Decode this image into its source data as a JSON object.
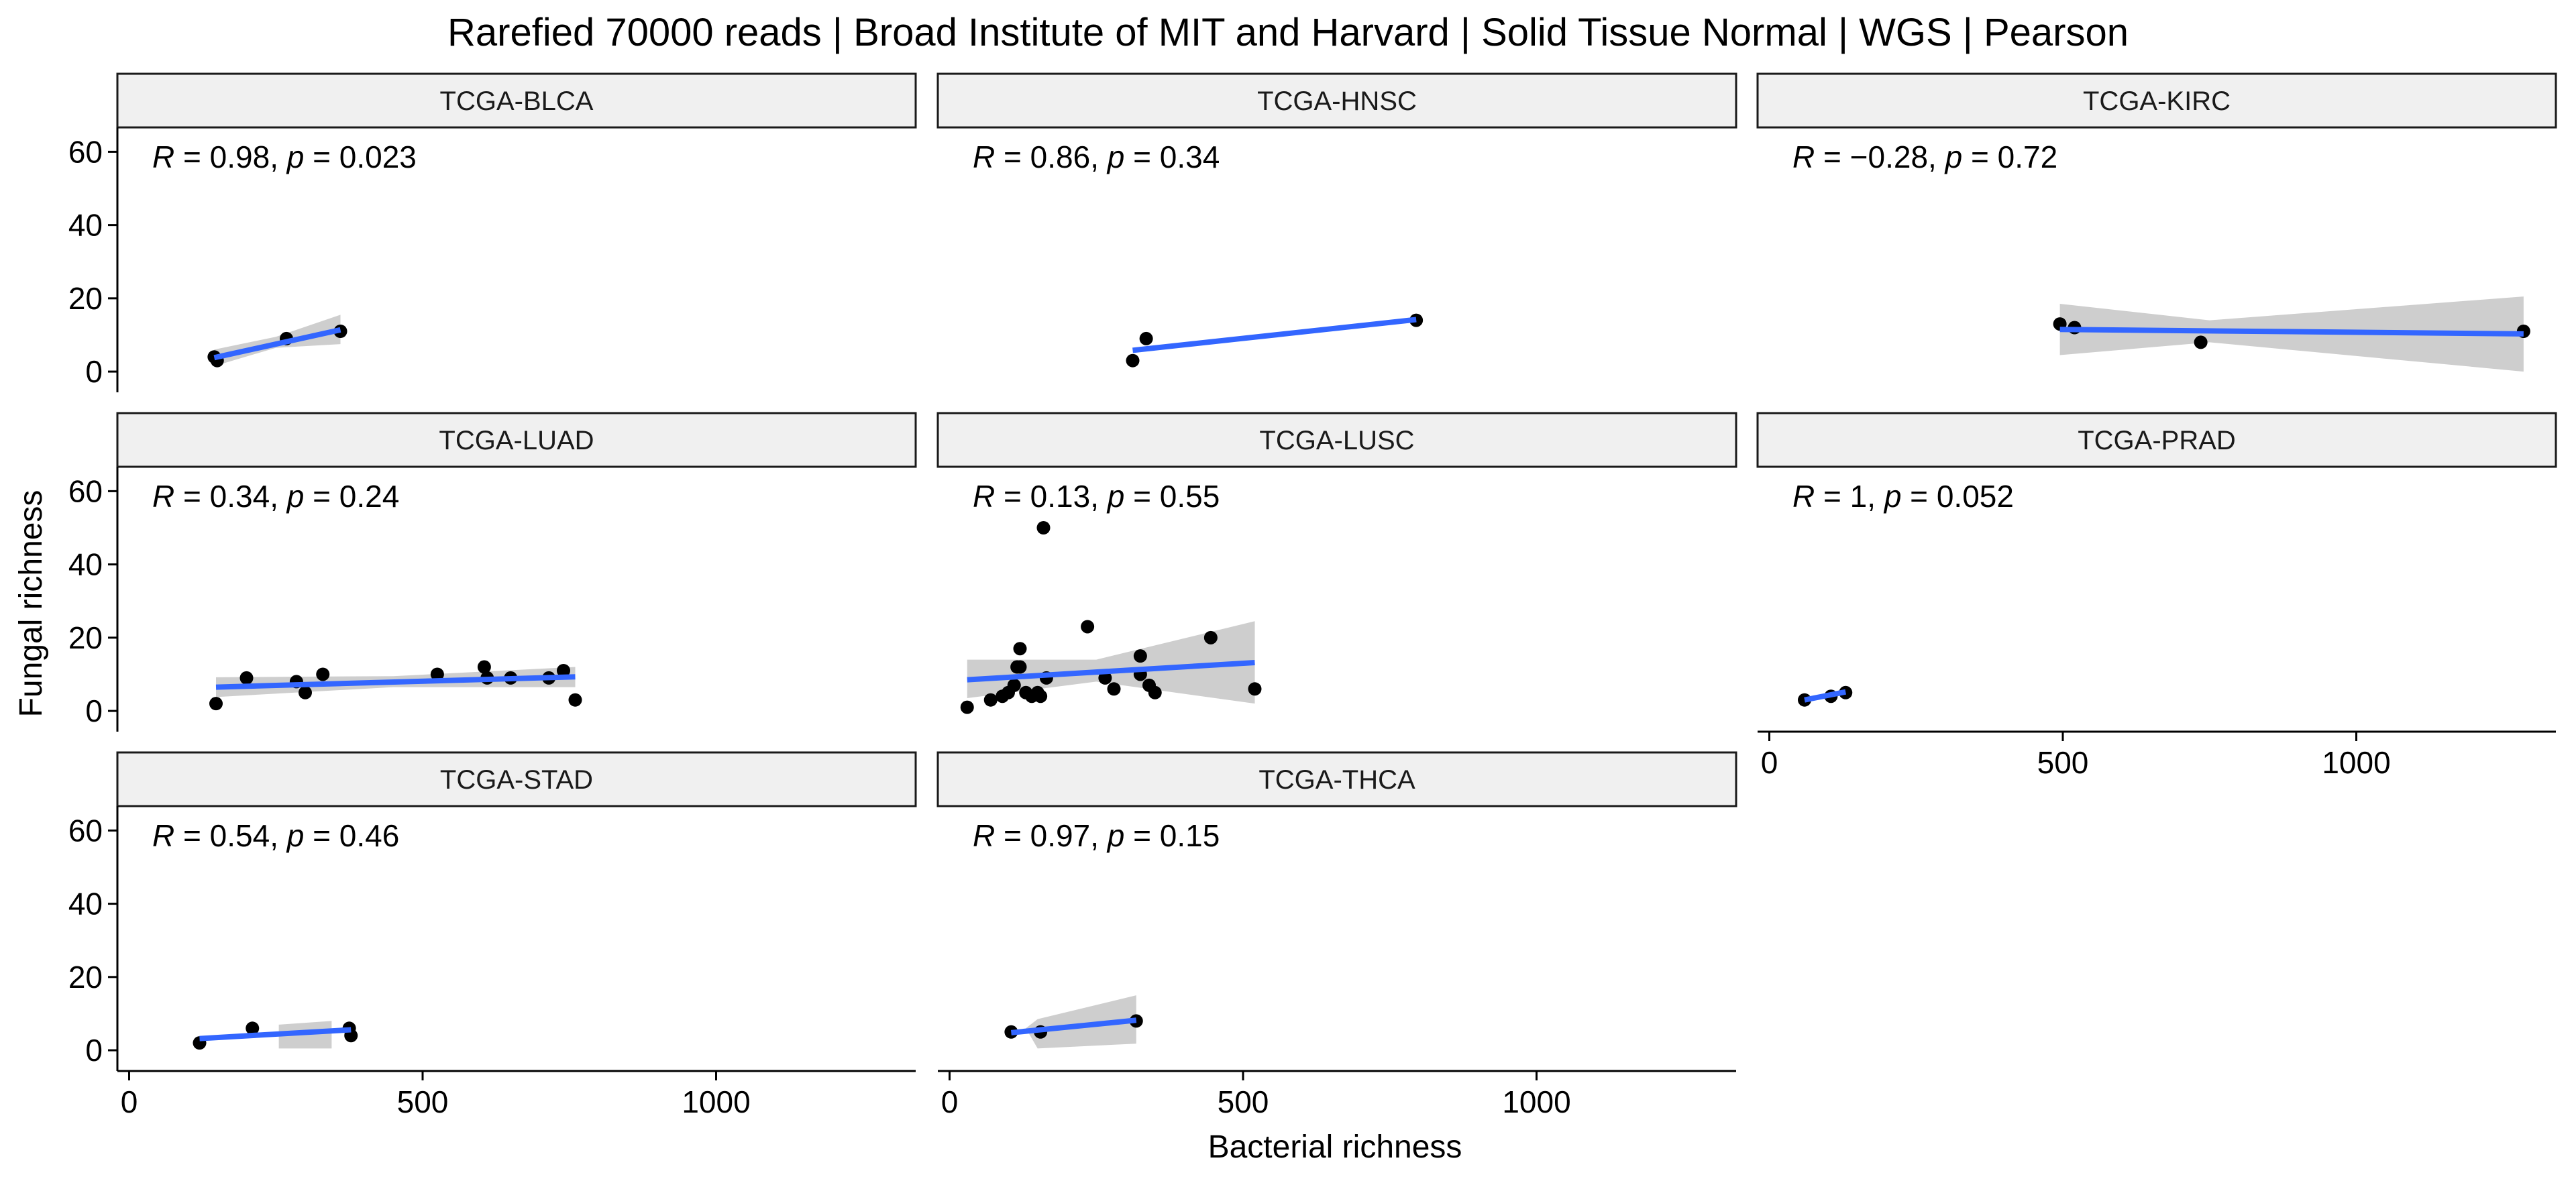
{
  "chart_data": {
    "type": "scatter",
    "title": "Rarefied 70000 reads | Broad Institute of MIT and Harvard | Solid Tissue Normal | WGS | Pearson",
    "xlabel": "Bacterial richness",
    "ylabel": "Fungal richness",
    "xlim": [
      -20,
      1340
    ],
    "ylim": [
      -2,
      63
    ],
    "x_ticks": [
      0,
      500,
      1000
    ],
    "y_ticks": [
      0,
      20,
      40,
      60
    ],
    "grid": false,
    "colors": {
      "point": "#000000",
      "line": "#3366FF",
      "ribbon": "#BEBEBE",
      "strip_fill": "#F0F0F0",
      "strip_border": "#1a1a1a"
    },
    "panels": [
      {
        "label": "TCGA-BLCA",
        "r_text": "0.98",
        "p_text": "0.023",
        "points": [
          [
            145,
            4
          ],
          [
            150,
            3
          ],
          [
            268,
            9
          ],
          [
            360,
            11
          ]
        ],
        "fit": [
          145,
          3.8,
          360,
          11.4
        ],
        "ribbon": [
          [
            145,
            1.5
          ],
          [
            250,
            6.5
          ],
          [
            360,
            7.5
          ],
          [
            360,
            15.5
          ],
          [
            250,
            9.5
          ],
          [
            145,
            6
          ]
        ]
      },
      {
        "label": "TCGA-HNSC",
        "r_text": "0.86",
        "p_text": "0.34",
        "points": [
          [
            312,
            3
          ],
          [
            335,
            9
          ],
          [
            795,
            14
          ]
        ],
        "fit": [
          312,
          5.8,
          795,
          14.2
        ],
        "ribbon": []
      },
      {
        "label": "TCGA-KIRC",
        "r_text": "−0.28",
        "p_text": "0.72",
        "points": [
          [
            495,
            13
          ],
          [
            520,
            12
          ],
          [
            735,
            8
          ],
          [
            1285,
            11
          ]
        ],
        "fit": [
          495,
          11.5,
          1285,
          10.3
        ],
        "ribbon": [
          [
            495,
            4.5
          ],
          [
            750,
            8
          ],
          [
            1285,
            0
          ],
          [
            1285,
            20.5
          ],
          [
            750,
            14
          ],
          [
            495,
            18.5
          ]
        ]
      },
      {
        "label": "TCGA-LUAD",
        "r_text": "0.34",
        "p_text": "0.24",
        "points": [
          [
            148,
            2
          ],
          [
            200,
            9
          ],
          [
            285,
            8
          ],
          [
            300,
            5
          ],
          [
            330,
            10
          ],
          [
            525,
            10
          ],
          [
            605,
            12
          ],
          [
            610,
            9
          ],
          [
            650,
            9
          ],
          [
            715,
            9
          ],
          [
            740,
            11
          ],
          [
            760,
            3
          ]
        ],
        "fit": [
          148,
          6.5,
          760,
          9.3
        ],
        "ribbon": [
          [
            148,
            3.8
          ],
          [
            450,
            6.5
          ],
          [
            760,
            6.5
          ],
          [
            760,
            12
          ],
          [
            450,
            9.5
          ],
          [
            148,
            9.2
          ]
        ]
      },
      {
        "label": "TCGA-LUSC",
        "r_text": "0.13",
        "p_text": "0.55",
        "points": [
          [
            30,
            1
          ],
          [
            70,
            3
          ],
          [
            90,
            4
          ],
          [
            100,
            5
          ],
          [
            110,
            7
          ],
          [
            115,
            12
          ],
          [
            120,
            17
          ],
          [
            120,
            12
          ],
          [
            130,
            5
          ],
          [
            140,
            4
          ],
          [
            150,
            5
          ],
          [
            155,
            4
          ],
          [
            160,
            50
          ],
          [
            165,
            9
          ],
          [
            235,
            23
          ],
          [
            265,
            9
          ],
          [
            280,
            6
          ],
          [
            325,
            15
          ],
          [
            325,
            10
          ],
          [
            340,
            7
          ],
          [
            350,
            5
          ],
          [
            445,
            20
          ],
          [
            520,
            6
          ]
        ],
        "fit": [
          30,
          8.5,
          520,
          13.2
        ],
        "ribbon": [
          [
            30,
            3.5
          ],
          [
            250,
            8
          ],
          [
            520,
            2
          ],
          [
            520,
            24.5
          ],
          [
            250,
            14
          ],
          [
            30,
            14
          ]
        ]
      },
      {
        "label": "TCGA-PRAD",
        "r_text": "1",
        "p_text": "0.052",
        "points": [
          [
            60,
            3
          ],
          [
            105,
            4
          ],
          [
            130,
            5
          ]
        ],
        "fit": [
          60,
          3,
          130,
          5.2
        ],
        "ribbon": []
      },
      {
        "label": "TCGA-STAD",
        "r_text": "0.54",
        "p_text": "0.46",
        "points": [
          [
            120,
            2
          ],
          [
            210,
            6
          ],
          [
            375,
            6
          ],
          [
            378,
            4
          ]
        ],
        "fit": [
          120,
          3.2,
          378,
          5.6
        ],
        "ribbon": [
          [
            255,
            0.5
          ],
          [
            345,
            0.5
          ],
          [
            345,
            8
          ],
          [
            255,
            7
          ]
        ]
      },
      {
        "label": "TCGA-THCA",
        "r_text": "0.97",
        "p_text": "0.15",
        "points": [
          [
            105,
            5
          ],
          [
            155,
            5
          ],
          [
            318,
            8
          ]
        ],
        "fit": [
          105,
          4.8,
          318,
          8.2
        ],
        "ribbon": [
          [
            150,
            0.5
          ],
          [
            318,
            1.8
          ],
          [
            318,
            15
          ],
          [
            150,
            8.5
          ],
          [
            130,
            6
          ]
        ]
      }
    ]
  }
}
